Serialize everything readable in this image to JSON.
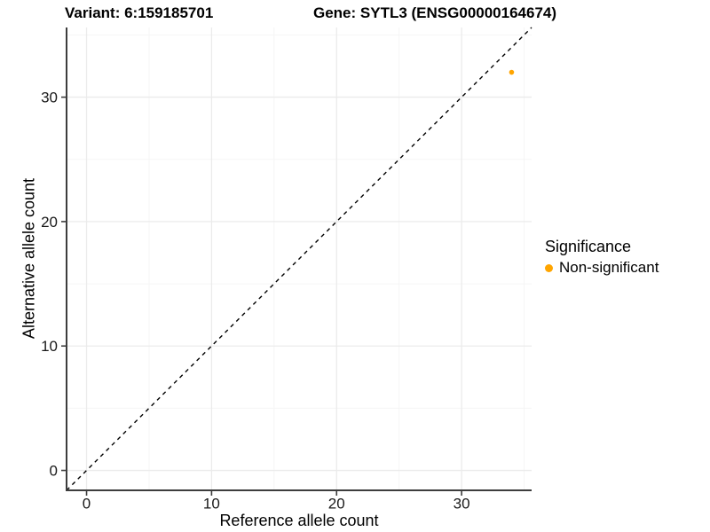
{
  "titles": {
    "variant": "Variant: 6:159185701",
    "gene": "Gene: SYTL3 (ENSG00000164674)"
  },
  "chart_data": {
    "type": "scatter",
    "title_left": "Variant: 6:159185701",
    "title_right": "Gene: SYTL3 (ENSG00000164674)",
    "xlabel": "Reference allele count",
    "ylabel": "Alternative allele count",
    "xlim": [
      -1.6,
      35.6
    ],
    "ylim": [
      -1.6,
      35.6
    ],
    "x_ticks": [
      0,
      10,
      20,
      30
    ],
    "y_ticks": [
      0,
      10,
      20,
      30
    ],
    "x_minor_ticks": [
      5,
      15,
      25,
      35
    ],
    "y_minor_ticks": [
      5,
      15,
      25,
      35
    ],
    "grid": "on",
    "series": [
      {
        "name": "Non-significant",
        "color": "#FFA500",
        "points": [
          {
            "x": 34,
            "y": 32
          }
        ]
      }
    ],
    "reference_line": {
      "type": "identity",
      "equation": "y = x",
      "style": "dashed",
      "color": "#000000"
    },
    "legend": {
      "title": "Significance",
      "position": "right"
    }
  },
  "style": {
    "axis_line_color": "#3d3d3d",
    "tick_label_color": "#1a1a1a",
    "major_grid_color": "#ebebeb",
    "minor_grid_color": "#f5f5f5"
  }
}
